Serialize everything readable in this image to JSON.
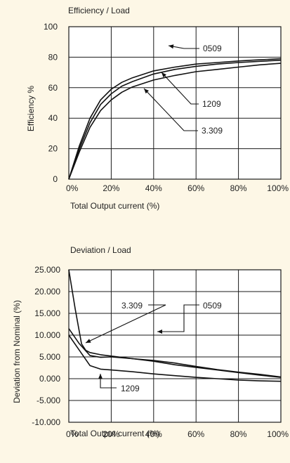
{
  "chart_data": [
    {
      "type": "line",
      "title": "Efficiency / Load",
      "xlabel": "Total Output current (%)",
      "ylabel": "Efficiency %",
      "xlim": [
        0,
        100
      ],
      "ylim": [
        0,
        100
      ],
      "x_ticks": [
        0,
        20,
        40,
        60,
        80,
        100
      ],
      "x_tick_labels": [
        "0%",
        "20%",
        "40%",
        "60%",
        "80%",
        "100%"
      ],
      "y_ticks": [
        0,
        20,
        40,
        60,
        80,
        100
      ],
      "y_tick_labels": [
        "0",
        "20",
        "40",
        "60",
        "80",
        "100"
      ],
      "grid": true,
      "series": [
        {
          "name": "0509",
          "x": [
            0,
            5,
            10,
            15,
            20,
            25,
            30,
            40,
            50,
            60,
            70,
            80,
            90,
            100
          ],
          "y": [
            0,
            22,
            40,
            52,
            59,
            63.5,
            66.5,
            71,
            73.5,
            75.5,
            76.5,
            77.5,
            78.3,
            79
          ]
        },
        {
          "name": "1209",
          "x": [
            0,
            5,
            10,
            15,
            20,
            25,
            30,
            40,
            50,
            60,
            70,
            80,
            90,
            100
          ],
          "y": [
            0,
            20,
            37,
            49,
            56,
            61,
            64,
            69,
            72,
            74,
            75.5,
            76.5,
            77.3,
            78
          ]
        },
        {
          "name": "3.309",
          "x": [
            0,
            5,
            10,
            15,
            20,
            25,
            30,
            40,
            50,
            60,
            70,
            80,
            90,
            100
          ],
          "y": [
            0,
            18,
            34,
            45,
            52,
            57,
            60.5,
            65,
            68,
            70.5,
            72,
            73.5,
            75,
            76
          ]
        }
      ],
      "annotations": [
        {
          "text": "0509",
          "series": "0509"
        },
        {
          "text": "1209",
          "series": "1209"
        },
        {
          "text": "3.309",
          "series": "3.309"
        }
      ]
    },
    {
      "type": "line",
      "title": "Deviation / Load",
      "xlabel": "Total Output current (%)",
      "ylabel": "Deviation from Nominal (%)",
      "xlim": [
        0,
        100
      ],
      "ylim": [
        -10,
        25
      ],
      "x_ticks": [
        0,
        20,
        40,
        60,
        80,
        100
      ],
      "x_tick_labels": [
        "0%",
        "20%",
        "40%",
        "60%",
        "80%",
        "100%"
      ],
      "y_ticks": [
        25,
        20,
        15,
        10,
        5,
        0,
        -5,
        -10
      ],
      "y_tick_labels": [
        "25.000",
        "20.000",
        "15.000",
        "10.000",
        "5.000",
        "0.000",
        "-5.000",
        "-10.000"
      ],
      "grid": true,
      "series": [
        {
          "name": "3.309",
          "x": [
            0,
            3,
            6,
            8,
            10,
            15,
            20,
            30,
            40,
            50,
            60,
            70,
            80,
            90,
            100
          ],
          "y": [
            25,
            16,
            8,
            6.5,
            6,
            5.5,
            5.2,
            4.6,
            4.0,
            3.2,
            2.6,
            2.0,
            1.4,
            0.8,
            0.3
          ]
        },
        {
          "name": "0509",
          "x": [
            0,
            5,
            10,
            15,
            20,
            30,
            40,
            50,
            60,
            70,
            80,
            90,
            100
          ],
          "y": [
            11.5,
            8,
            5.3,
            4.9,
            5.0,
            4.6,
            4.2,
            3.6,
            2.8,
            2.1,
            1.5,
            1.0,
            0.4
          ]
        },
        {
          "name": "1209",
          "x": [
            0,
            5,
            10,
            15,
            20,
            30,
            40,
            50,
            60,
            70,
            80,
            90,
            100
          ],
          "y": [
            10,
            6.5,
            3,
            2.2,
            2.0,
            1.6,
            1.1,
            0.7,
            0.3,
            0.0,
            -0.3,
            -0.5,
            -0.6
          ]
        }
      ],
      "annotations": [
        {
          "text": "3.309",
          "series": "3.309"
        },
        {
          "text": "0509",
          "series": "0509"
        },
        {
          "text": "1209",
          "series": "1209"
        }
      ]
    }
  ]
}
